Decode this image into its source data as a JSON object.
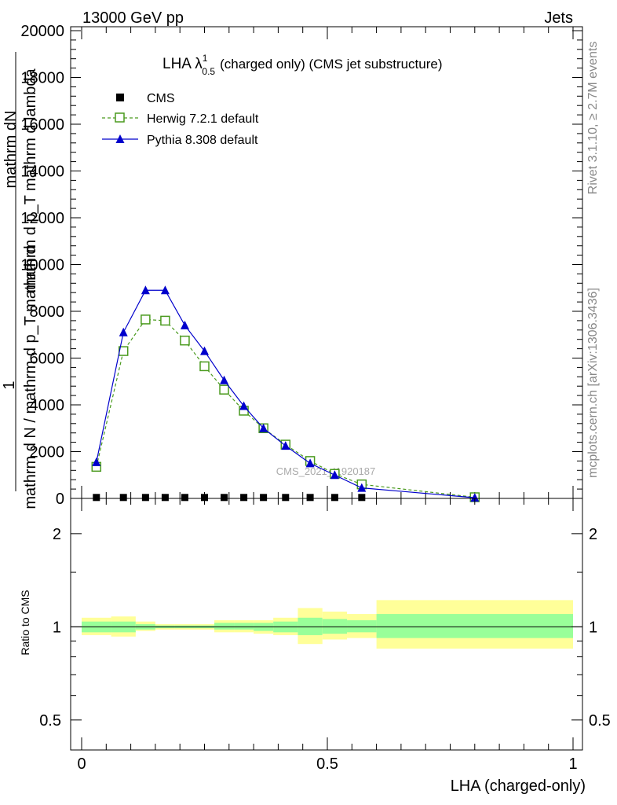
{
  "header": {
    "left": "13000 GeV pp",
    "right": "Jets"
  },
  "side_text": {
    "rivet": "Rivet 3.1.10, ≥ 2.7M events",
    "mcplots": "mcplots.cern.ch [arXiv:1306.3436]"
  },
  "watermark": "CMS_2021_I1920187",
  "chart_data": [
    {
      "type": "line",
      "title_main": "LHA λ",
      "title_sup": "1",
      "title_sub": "0.5",
      "title_rest": "(charged only) (CMS jet substructure)",
      "ylabel_top": "mathrm d",
      "ylabel_top_N": "N",
      "ylabel_lines": [
        "mathrm d p_T mathrm d lambda",
        "1",
        "mathrm d N / mathrm d p_T mathrm d"
      ],
      "xlim": [
        0,
        1
      ],
      "ylim": [
        0,
        20000
      ],
      "yticks": [
        0,
        2000,
        4000,
        6000,
        8000,
        10000,
        12000,
        14000,
        16000,
        18000,
        20000
      ],
      "yticklabels": [
        "0",
        "2000",
        "4000",
        "6000",
        "8000",
        "10000",
        "12000",
        "14000",
        "16000",
        "18000",
        "20000"
      ],
      "legend_position": "top-left",
      "series": [
        {
          "name": "CMS",
          "color": "#000000",
          "marker": "square-filled",
          "x": [
            0.03,
            0.085,
            0.13,
            0.17,
            0.21,
            0.25,
            0.29,
            0.33,
            0.37,
            0.415,
            0.465,
            0.515,
            0.57
          ],
          "y": [
            40,
            40,
            40,
            40,
            40,
            40,
            40,
            40,
            40,
            40,
            40,
            40,
            40
          ]
        },
        {
          "name": "Herwig 7.2.1 default",
          "color": "#4a9a1e",
          "marker": "square-open",
          "line": "dashed",
          "x": [
            0.03,
            0.085,
            0.13,
            0.17,
            0.21,
            0.25,
            0.29,
            0.33,
            0.37,
            0.415,
            0.465,
            0.515,
            0.57,
            0.8
          ],
          "y": [
            1350,
            6300,
            7650,
            7600,
            6750,
            5650,
            4650,
            3750,
            3000,
            2300,
            1600,
            1050,
            600,
            50
          ]
        },
        {
          "name": "Pythia 8.308 default",
          "color": "#0000cc",
          "marker": "triangle-filled",
          "line": "solid",
          "x": [
            0.03,
            0.085,
            0.13,
            0.17,
            0.21,
            0.25,
            0.29,
            0.33,
            0.37,
            0.415,
            0.465,
            0.515,
            0.57,
            0.8
          ],
          "y": [
            1550,
            7100,
            8900,
            8900,
            7400,
            6300,
            5050,
            3950,
            3000,
            2250,
            1500,
            1000,
            450,
            30
          ]
        }
      ]
    },
    {
      "type": "area",
      "ylabel": "Ratio to CMS",
      "xlabel": "LHA (charged-only)",
      "xlim": [
        0,
        1
      ],
      "xticks": [
        0,
        0.5,
        1
      ],
      "xticklabels": [
        "0",
        "0.5",
        "1"
      ],
      "yticks": [
        0.5,
        1,
        2
      ],
      "yticklabels": [
        "0.5",
        "1",
        "2"
      ],
      "ylim_log": [
        0.4,
        2.6
      ],
      "band_colors": {
        "inner": "#99ff99",
        "outer": "#ffff99"
      },
      "bins": [
        {
          "lo": 0.0,
          "hi": 0.06,
          "outer": [
            0.94,
            1.07
          ],
          "inner": [
            0.96,
            1.04
          ]
        },
        {
          "lo": 0.06,
          "hi": 0.11,
          "outer": [
            0.93,
            1.08
          ],
          "inner": [
            0.96,
            1.04
          ]
        },
        {
          "lo": 0.11,
          "hi": 0.15,
          "outer": [
            0.97,
            1.04
          ],
          "inner": [
            0.98,
            1.02
          ]
        },
        {
          "lo": 0.15,
          "hi": 0.19,
          "outer": [
            0.98,
            1.02
          ],
          "inner": [
            0.99,
            1.01
          ]
        },
        {
          "lo": 0.19,
          "hi": 0.23,
          "outer": [
            0.98,
            1.02
          ],
          "inner": [
            0.99,
            1.01
          ]
        },
        {
          "lo": 0.23,
          "hi": 0.27,
          "outer": [
            0.98,
            1.02
          ],
          "inner": [
            0.99,
            1.01
          ]
        },
        {
          "lo": 0.27,
          "hi": 0.31,
          "outer": [
            0.96,
            1.05
          ],
          "inner": [
            0.98,
            1.03
          ]
        },
        {
          "lo": 0.31,
          "hi": 0.35,
          "outer": [
            0.96,
            1.05
          ],
          "inner": [
            0.98,
            1.03
          ]
        },
        {
          "lo": 0.35,
          "hi": 0.39,
          "outer": [
            0.95,
            1.05
          ],
          "inner": [
            0.97,
            1.03
          ]
        },
        {
          "lo": 0.39,
          "hi": 0.44,
          "outer": [
            0.94,
            1.07
          ],
          "inner": [
            0.96,
            1.04
          ]
        },
        {
          "lo": 0.44,
          "hi": 0.49,
          "outer": [
            0.88,
            1.15
          ],
          "inner": [
            0.94,
            1.07
          ]
        },
        {
          "lo": 0.49,
          "hi": 0.54,
          "outer": [
            0.91,
            1.12
          ],
          "inner": [
            0.95,
            1.06
          ]
        },
        {
          "lo": 0.54,
          "hi": 0.6,
          "outer": [
            0.92,
            1.1
          ],
          "inner": [
            0.96,
            1.05
          ]
        },
        {
          "lo": 0.6,
          "hi": 1.0,
          "outer": [
            0.85,
            1.22
          ],
          "inner": [
            0.92,
            1.1
          ]
        }
      ]
    }
  ]
}
